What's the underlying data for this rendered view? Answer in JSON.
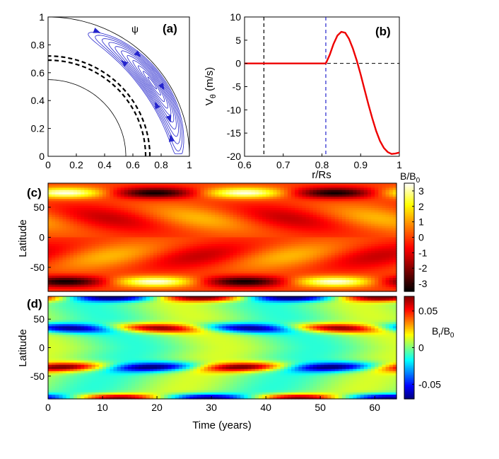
{
  "chart_data": [
    {
      "panel": "(a)",
      "type": "contour",
      "symbol": "ψ",
      "xlim": [
        0,
        1
      ],
      "ylim": [
        0,
        1
      ],
      "xticks": [
        "0",
        "0.2",
        "0.4",
        "0.6",
        "0.8",
        "1"
      ],
      "yticks": [
        "0",
        "0.2",
        "0.4",
        "0.6",
        "0.8",
        "1"
      ],
      "inner_boundary_radius": 0.55,
      "dashed_radii": [
        0.69,
        0.72
      ],
      "outer_radius": 1.0,
      "cell_inner_radius": 0.81,
      "flow": "clockwise meridional cell with arrowheads",
      "colors": {
        "contours": "#2525cc",
        "dashed": "#000000",
        "boundary": "#000000"
      }
    },
    {
      "panel": "(b)",
      "type": "line",
      "ylabel": "V",
      "ylabel_sub": "θ",
      "ylabel_units": " (m/s)",
      "xlabel": "r/Rs",
      "xlim": [
        0.6,
        1
      ],
      "ylim": [
        -20,
        10
      ],
      "xticks": [
        "0.6",
        "0.7",
        "0.8",
        "0.9",
        "1"
      ],
      "yticks": [
        "10",
        "5",
        "0",
        "-5",
        "-10",
        "-15",
        "-20"
      ],
      "series": [
        {
          "color": "#ee0000",
          "x": [
            0.6,
            0.65,
            0.7,
            0.75,
            0.8,
            0.81,
            0.82,
            0.83,
            0.84,
            0.85,
            0.86,
            0.87,
            0.88,
            0.89,
            0.9,
            0.91,
            0.92,
            0.93,
            0.94,
            0.95,
            0.96,
            0.97,
            0.98,
            0.99,
            1.0
          ],
          "y": [
            0,
            0,
            0,
            0,
            0,
            0,
            1.8,
            4.2,
            6.0,
            6.8,
            6.6,
            5.3,
            3.2,
            0.6,
            -2.4,
            -5.6,
            -8.8,
            -11.8,
            -14.5,
            -16.7,
            -18.2,
            -19.1,
            -19.5,
            -19.4,
            -19.2
          ]
        }
      ],
      "vlines": [
        {
          "x": 0.65,
          "color": "#000000"
        },
        {
          "x": 0.81,
          "color": "#2222cc"
        }
      ],
      "hline": 0
    },
    {
      "panel": "(c)",
      "type": "heatmap",
      "xlabel": "Time (years)",
      "ylabel": "Latitude",
      "xlim": [
        0,
        64
      ],
      "ylim": [
        -90,
        90
      ],
      "yticks": [
        "50",
        "0",
        "-50"
      ],
      "colorbar": {
        "label": "B/B",
        "label_sub": "0",
        "range": [
          -3.5,
          3.5
        ],
        "ticks": [
          "3",
          "2",
          "1",
          "0",
          "-1",
          "-2",
          "-3"
        ],
        "colormap": "hot"
      },
      "features": "polar fields reverse every ~16.5 years (period ~33 years); equatorward migrating bands"
    },
    {
      "panel": "(d)",
      "type": "heatmap",
      "xlabel": "Time (years)",
      "ylabel": "Latitude",
      "xlim": [
        0,
        64
      ],
      "ylim": [
        -90,
        90
      ],
      "xticks": [
        "0",
        "10",
        "20",
        "30",
        "40",
        "50",
        "60"
      ],
      "yticks": [
        "50",
        "0",
        "-50"
      ],
      "colorbar": {
        "label": "B",
        "label_sub": "r",
        "label_tail": "/B",
        "label_sub2": "0",
        "range": [
          -0.07,
          0.07
        ],
        "ticks": [
          "0.05",
          "0",
          "-0.05"
        ],
        "colormap": "jet"
      }
    }
  ],
  "labels": {
    "a": "(a)",
    "b": "(b)",
    "c": "(c)",
    "d": "(d)"
  }
}
